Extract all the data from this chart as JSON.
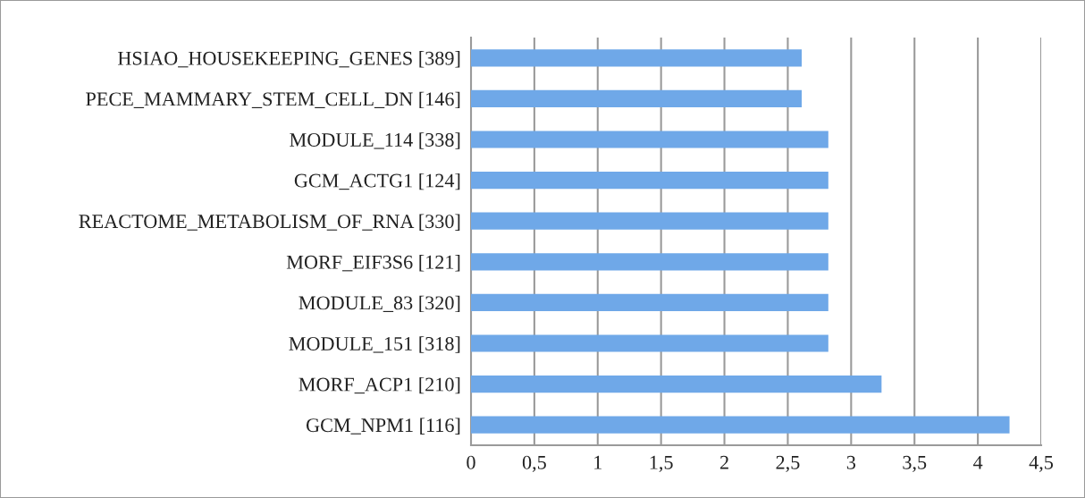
{
  "chart_data": {
    "type": "bar",
    "orientation": "horizontal",
    "categories": [
      "HSIAO_HOUSEKEEPING_GENES [389]",
      "PECE_MAMMARY_STEM_CELL_DN [146]",
      "MODULE_114 [338]",
      "GCM_ACTG1 [124]",
      "REACTOME_METABOLISM_OF_RNA [330]",
      "MORF_EIF3S6 [121]",
      "MODULE_83 [320]",
      "MODULE_151 [318]",
      "MORF_ACP1 [210]",
      "GCM_NPM1 [116]"
    ],
    "values": [
      2.61,
      2.61,
      2.82,
      2.82,
      2.82,
      2.82,
      2.82,
      2.82,
      3.24,
      4.25
    ],
    "color": "#6fa8e8",
    "xlim": [
      0,
      4.5
    ],
    "xticks": [
      0,
      {
        "value": 0.5,
        "label": "0,5"
      },
      1,
      {
        "value": 1.5,
        "label": "1,5"
      },
      2,
      {
        "value": 2.5,
        "label": "2,5"
      },
      3,
      {
        "value": 3.5,
        "label": "3,5"
      },
      4,
      {
        "value": 4.5,
        "label": "4,5"
      }
    ],
    "grid": "x",
    "legend": false
  }
}
